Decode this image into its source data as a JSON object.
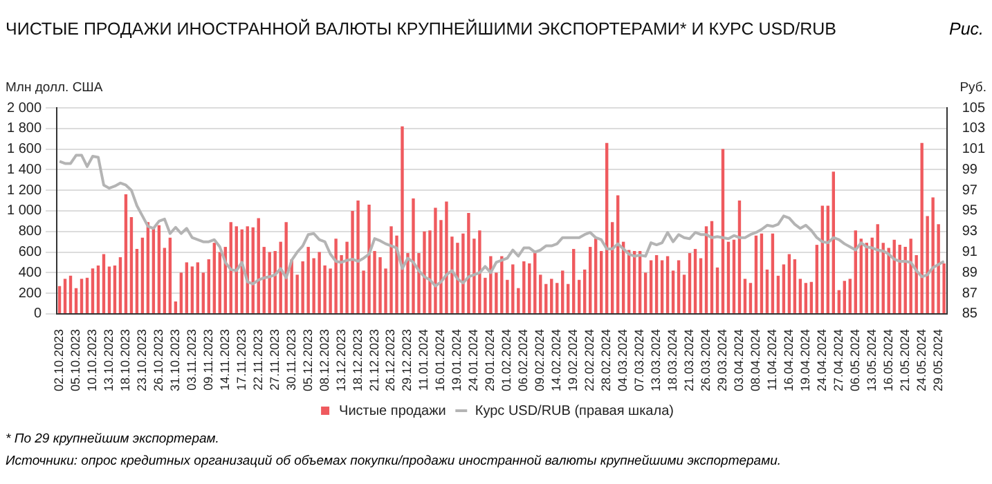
{
  "chart_data": {
    "type": "bar",
    "title": "ЧИСТЫЕ ПРОДАЖИ ИНОСТРАННОЙ ВАЛЮТЫ КРУПНЕЙШИМИ ЭКСПОРТЕРАМИ* И КУРС USD/RUB",
    "ylabel": "Млн долл. США",
    "y2label": "Руб.",
    "annotations": [
      "Рис.",
      "* По 29 крупнейшим экспортерам.",
      "Источники: опрос кредитных организаций об объемах покупки/продажи иностранной валюты крупнейшими экспортерами."
    ],
    "categories": [
      "02.10.2023",
      null,
      null,
      "05.10.2023",
      null,
      null,
      "10.10.2023",
      null,
      null,
      "13.10.2023",
      null,
      null,
      "18.10.2023",
      null,
      null,
      "23.10.2023",
      null,
      null,
      "26.10.2023",
      null,
      null,
      "31.10.2023",
      null,
      null,
      "03.11.2023",
      null,
      null,
      "09.11.2023",
      null,
      null,
      "14.11.2023",
      null,
      null,
      "17.11.2023",
      null,
      null,
      "22.11.2023",
      null,
      null,
      "27.11.2023",
      null,
      null,
      "30.11.2023",
      null,
      null,
      "05.12.2023",
      null,
      null,
      "08.12.2023",
      null,
      null,
      "13.12.2023",
      null,
      null,
      "18.12.2023",
      null,
      null,
      "21.12.2023",
      null,
      null,
      "26.12.2023",
      null,
      null,
      "29.12.2023",
      null,
      null,
      "11.01.2024",
      null,
      null,
      "16.01.2024",
      null,
      null,
      "19.01.2024",
      null,
      null,
      "24.01.2024",
      null,
      null,
      "29.01.2024",
      null,
      null,
      "01.02.2024",
      null,
      null,
      "06.02.2024",
      null,
      null,
      "09.02.2024",
      null,
      null,
      "14.02.2024",
      null,
      null,
      "19.02.2024",
      null,
      null,
      "22.02.2024",
      null,
      null,
      "28.02.2024",
      null,
      null,
      "04.03.2024",
      null,
      null,
      "07.03.2024",
      null,
      null,
      "13.03.2024",
      null,
      null,
      "18.03.2024",
      null,
      null,
      "21.03.2024",
      null,
      null,
      "26.03.2024",
      null,
      null,
      "29.03.2024",
      null,
      null,
      "03.04.2024",
      null,
      null,
      "08.04.2024",
      null,
      null,
      "11.04.2024",
      null,
      null,
      "16.04.2024",
      null,
      null,
      "19.04.2024",
      null,
      null,
      "24.04.2024",
      null,
      null,
      "27.04.2024",
      null,
      null,
      "06.05.2024",
      null,
      null,
      "13.05.2024",
      null,
      null,
      "16.05.2024",
      null,
      null,
      "21.05.2024",
      null,
      null,
      "24.05.2024",
      null,
      null,
      "29.05.2024",
      null
    ],
    "series": [
      {
        "name": "Чистые продажи",
        "color": "#ef5a5e",
        "values": [
          270,
          340,
          370,
          250,
          340,
          350,
          440,
          470,
          580,
          460,
          470,
          550,
          1160,
          940,
          630,
          740,
          890,
          830,
          860,
          640,
          740,
          120,
          400,
          500,
          460,
          500,
          400,
          530,
          690,
          600,
          650,
          890,
          850,
          820,
          850,
          840,
          930,
          650,
          600,
          610,
          700,
          890,
          530,
          380,
          510,
          650,
          540,
          600,
          470,
          440,
          730,
          570,
          700,
          1000,
          1100,
          420,
          1060,
          610,
          550,
          440,
          850,
          760,
          1820,
          590,
          1120,
          590,
          800,
          810,
          1030,
          910,
          1090,
          750,
          690,
          780,
          980,
          730,
          810,
          350,
          560,
          400,
          560,
          330,
          480,
          250,
          510,
          490,
          600,
          380,
          290,
          340,
          300,
          420,
          290,
          630,
          330,
          430,
          650,
          730,
          610,
          1660,
          890,
          1150,
          700,
          620,
          610,
          610,
          400,
          520,
          570,
          520,
          560,
          420,
          520,
          380,
          590,
          630,
          540,
          850,
          900,
          450,
          1600,
          700,
          720,
          1100,
          340,
          300,
          760,
          780,
          430,
          780,
          370,
          480,
          580,
          530,
          340,
          300,
          310,
          670,
          1050,
          1050,
          1380,
          230,
          320,
          340,
          810,
          730,
          690,
          740,
          870,
          690,
          640,
          720,
          670,
          650,
          730,
          570,
          1660,
          950,
          1130,
          870,
          490
        ]
      },
      {
        "name": "Курс USD/RUB (правая шкала)",
        "type": "line",
        "axis": "y2",
        "color": "#b4b4b4",
        "values": [
          99.8,
          99.6,
          99.6,
          100.4,
          100.4,
          99.3,
          100.3,
          100.2,
          97.5,
          97.2,
          97.4,
          97.7,
          97.5,
          97.0,
          95.5,
          94.5,
          93.5,
          93.3,
          94.0,
          94.2,
          92.8,
          93.4,
          92.8,
          93.3,
          92.4,
          92.2,
          92.0,
          92.0,
          92.2,
          91.5,
          90.0,
          89.3,
          89.2,
          90.0,
          88.1,
          87.9,
          88.3,
          88.5,
          88.6,
          88.8,
          89.4,
          88.5,
          90.2,
          91.0,
          91.6,
          92.7,
          92.8,
          92.2,
          92.0,
          90.8,
          90.1,
          90.0,
          90.2,
          90.3,
          90.1,
          90.4,
          90.8,
          92.3,
          92.1,
          91.8,
          91.6,
          91.4,
          89.4,
          90.4,
          90.0,
          89.2,
          88.6,
          88.3,
          87.7,
          88.1,
          88.8,
          89.2,
          88.4,
          88.0,
          88.6,
          88.8,
          89.0,
          89.6,
          89.0,
          90.0,
          90.2,
          90.4,
          91.2,
          90.6,
          91.4,
          91.4,
          91.0,
          91.2,
          91.6,
          91.6,
          91.8,
          92.4,
          92.4,
          92.4,
          92.4,
          92.7,
          92.9,
          92.4,
          92.2,
          91.3,
          91.3,
          91.8,
          91.3,
          90.8,
          90.6,
          90.7,
          90.6,
          91.9,
          91.7,
          91.9,
          92.9,
          92.0,
          92.7,
          92.4,
          92.3,
          92.9,
          92.7,
          92.7,
          92.4,
          92.5,
          92.4,
          92.3,
          92.6,
          92.4,
          92.4,
          92.7,
          92.9,
          93.2,
          93.6,
          93.5,
          93.7,
          94.5,
          94.3,
          93.7,
          93.3,
          93.6,
          93.1,
          92.4,
          92.0,
          91.9,
          92.4,
          92.2,
          91.8,
          91.5,
          91.2,
          91.9,
          91.5,
          91.4,
          91.2,
          91.1,
          90.8,
          90.3,
          90.1,
          90.1,
          90.0,
          89.2,
          88.6,
          88.8,
          89.5,
          89.8,
          90.1
        ]
      }
    ],
    "ylim": [
      0,
      2000
    ],
    "yticks": [
      0,
      200,
      400,
      600,
      800,
      {
        "value": 1000,
        "label": "1 000"
      },
      {
        "value": 1200,
        "label": "1 200"
      },
      {
        "value": 1400,
        "label": "1 400"
      },
      {
        "value": 1600,
        "label": "1 600"
      },
      {
        "value": 1800,
        "label": "1 800"
      },
      {
        "value": 2000,
        "label": "2 000"
      }
    ],
    "y2lim": [
      85,
      105
    ],
    "y2ticks": [
      85,
      87,
      89,
      91,
      93,
      95,
      97,
      99,
      101,
      103,
      105
    ],
    "grid": "y",
    "legend": "bottom",
    "marker": "none"
  }
}
